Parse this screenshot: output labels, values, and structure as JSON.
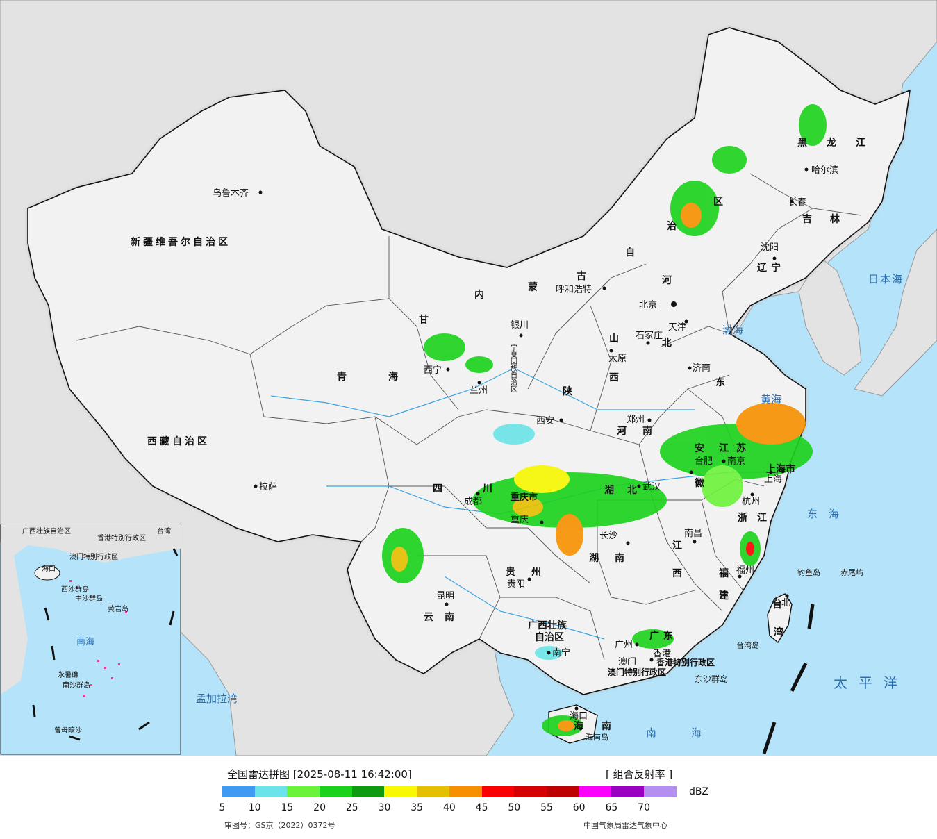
{
  "legend": {
    "title": "全国雷达拼图 [2025-08-11 16:42:00]",
    "product": "[ 组合反射率 ]",
    "unit": "dBZ",
    "ticks": [
      "5",
      "10",
      "15",
      "20",
      "25",
      "30",
      "35",
      "40",
      "45",
      "50",
      "55",
      "60",
      "65",
      "70"
    ],
    "colors": [
      "#3e9bf0",
      "#6ae4e8",
      "#6cf23a",
      "#1bd21b",
      "#0f9a0f",
      "#f8f800",
      "#e4c000",
      "#f79000",
      "#fb0000",
      "#d70000",
      "#bd0000",
      "#fb00fb",
      "#9a00c0",
      "#b48ef0"
    ],
    "approval": "审图号：GS京（2022）0372号",
    "agency": "中国气象局雷达气象中心"
  },
  "map": {
    "colors": {
      "sea": "#b5e3f9",
      "land_china": "#f2f2f2",
      "land_foreign": "#e3e3e3",
      "border": "#111111"
    },
    "regions": [
      "新疆维吾尔自治区",
      "西藏自治区",
      "青海",
      "甘",
      "四",
      "川",
      "云",
      "南",
      "内",
      "蒙",
      "古",
      "自",
      "治",
      "区",
      "黑",
      "龙",
      "江",
      "吉",
      "林",
      "辽",
      "宁",
      "河",
      "北",
      "山",
      "西",
      "东",
      "陕",
      "河",
      "南",
      "湖",
      "北",
      "湖",
      "南",
      "江",
      "西",
      "浙",
      "江",
      "福",
      "建",
      "广西壮族",
      "自治区",
      "广",
      "东",
      "海",
      "南",
      "台",
      "湾",
      "宁夏回族自治区",
      "安",
      "徽",
      "江",
      "苏",
      "重庆市",
      "上海市",
      "贵",
      "州",
      "香港特别行政区",
      "澳门特别行政区"
    ],
    "cities": [
      "乌鲁木齐",
      "拉萨",
      "西宁",
      "兰州",
      "银川",
      "成都",
      "重庆",
      "贵阳",
      "昆明",
      "南宁",
      "广州",
      "香港",
      "澳门",
      "海口",
      "长沙",
      "南昌",
      "武汉",
      "西安",
      "郑州",
      "太原",
      "石家庄",
      "北京",
      "天津",
      "济南",
      "南京",
      "合肥",
      "上海",
      "杭州",
      "福州",
      "台北",
      "呼和浩特",
      "哈尔滨",
      "长春",
      "沈阳"
    ],
    "seas": [
      "日本海",
      "渤海",
      "黄海",
      "东海",
      "太平洋",
      "南海",
      "孟加拉湾",
      "台湾岛",
      "钓鱼岛",
      "赤尾屿",
      "东沙群岛",
      "海南岛"
    ],
    "inset_labels": [
      "广西壮族自治区",
      "香港特别行政区",
      "澳门特别行政区",
      "台湾",
      "海口",
      "西沙群岛",
      "中沙群岛",
      "南海",
      "南沙群岛",
      "曾母暗沙",
      "黄岩岛",
      "永暑礁"
    ]
  }
}
